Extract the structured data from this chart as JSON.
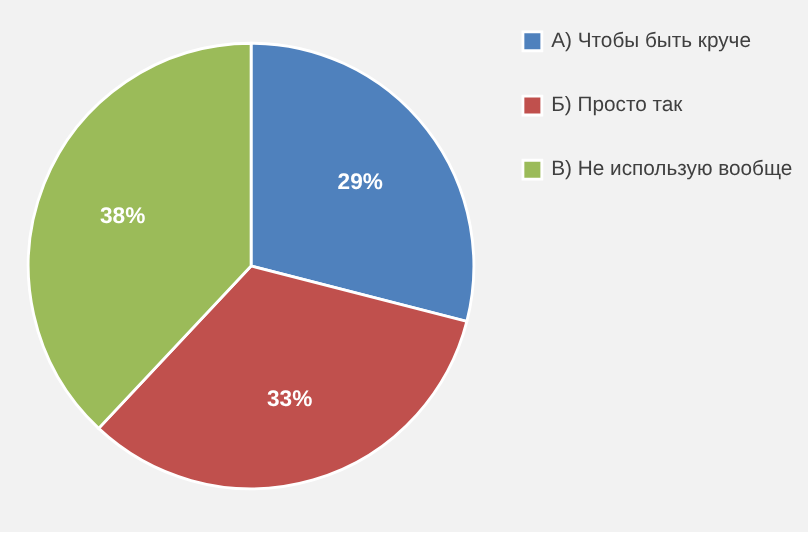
{
  "chart_data": {
    "type": "pie",
    "categories": [
      "А) Чтобы быть круче",
      "Б) Просто так",
      "В) Не использую вообще"
    ],
    "values": [
      29,
      33,
      38
    ],
    "colors": [
      "#4f81bd",
      "#c0504d",
      "#9bbb59"
    ],
    "value_labels": [
      "29%",
      "33%",
      "38%"
    ],
    "legend": "right"
  }
}
